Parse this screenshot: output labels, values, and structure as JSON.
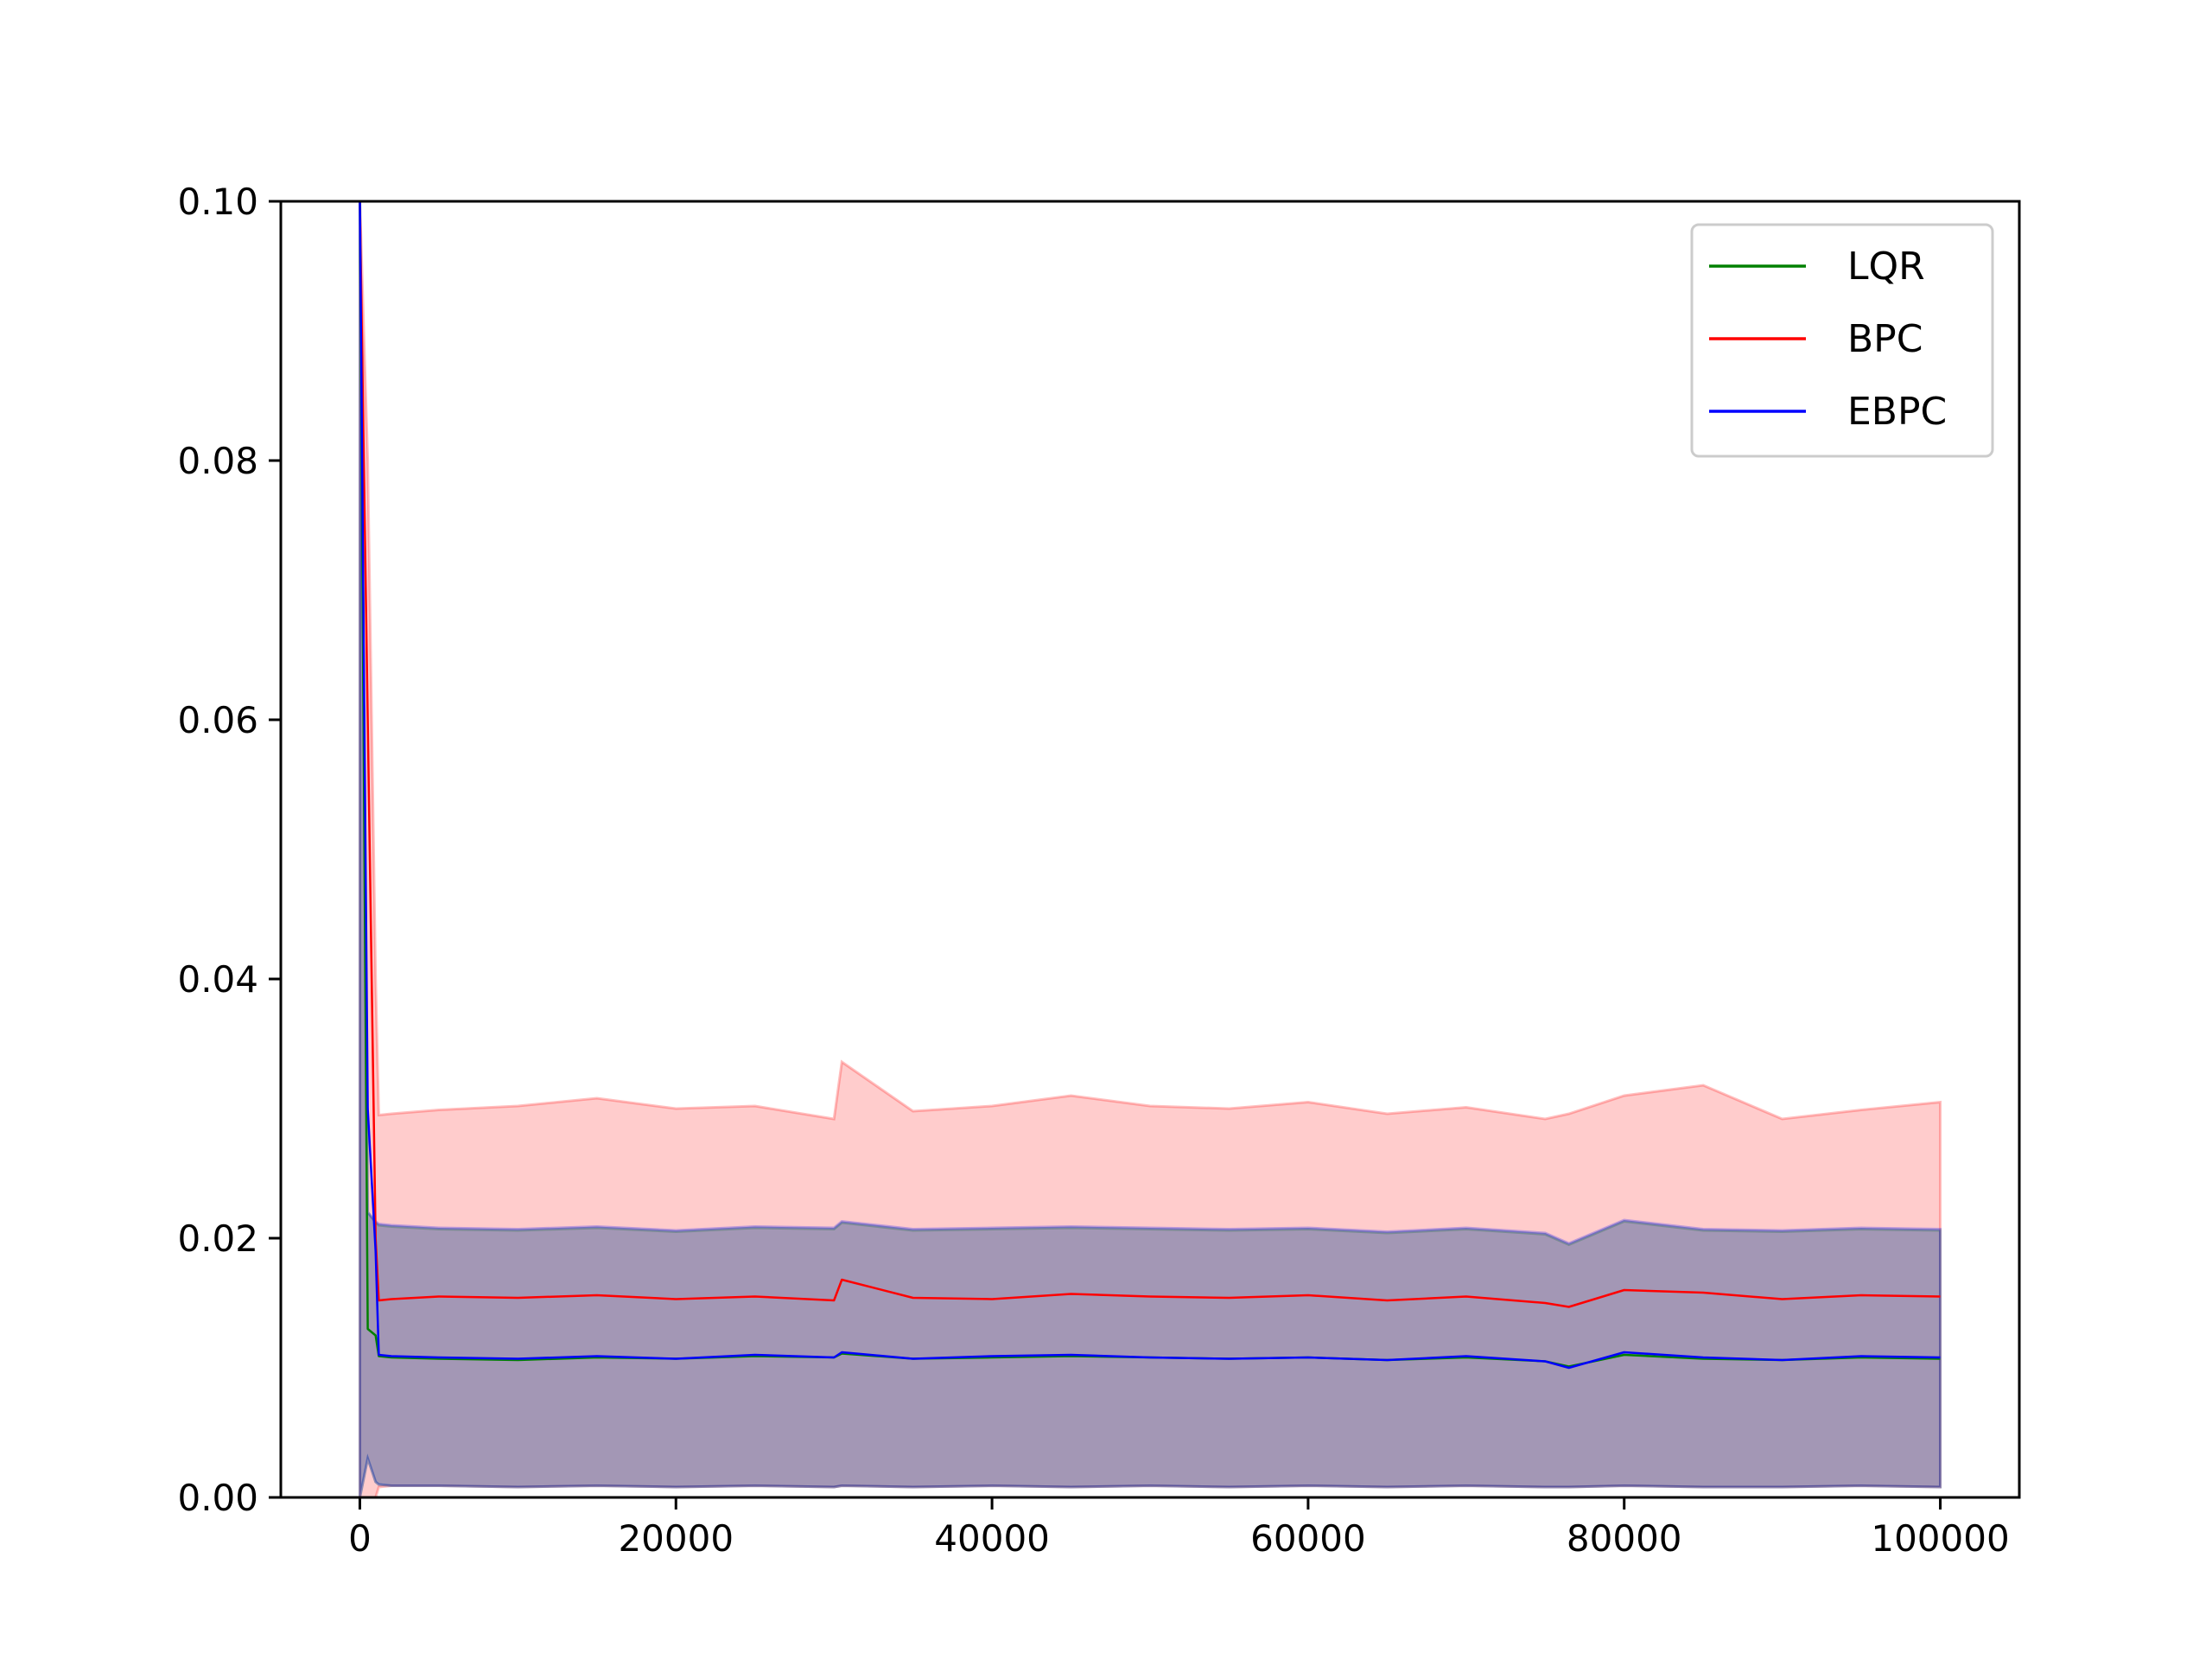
{
  "chart_data": {
    "type": "line",
    "title": "",
    "xlabel": "",
    "ylabel": "",
    "xlim": [
      -5000,
      105000
    ],
    "ylim": [
      0,
      0.1
    ],
    "x_ticks": [
      0,
      20000,
      40000,
      60000,
      80000,
      100000
    ],
    "x_tick_labels": [
      "0",
      "20000",
      "40000",
      "60000",
      "80000",
      "100000"
    ],
    "y_ticks": [
      0,
      0.02,
      0.04,
      0.06,
      0.08,
      0.1
    ],
    "y_tick_labels": [
      "0.00",
      "0.02",
      "0.04",
      "0.06",
      "0.08",
      "0.10"
    ],
    "grid": false,
    "legend_position": "top-right",
    "x": [
      0,
      500,
      1000,
      1200,
      2000,
      5000,
      10000,
      15000,
      20000,
      25000,
      30000,
      30500,
      35000,
      40000,
      45000,
      50000,
      55000,
      60000,
      65000,
      70000,
      75000,
      76500,
      80000,
      85000,
      90000,
      95000,
      100000
    ],
    "series": [
      {
        "name": "LQR",
        "color": "#008000",
        "values": [
          0.1,
          0.013,
          0.0125,
          0.0109,
          0.0108,
          0.0107,
          0.0106,
          0.0108,
          0.0107,
          0.0109,
          0.0108,
          0.0111,
          0.0107,
          0.0108,
          0.0109,
          0.0108,
          0.0107,
          0.0108,
          0.0106,
          0.0108,
          0.0105,
          0.0101,
          0.011,
          0.0107,
          0.0106,
          0.0108,
          0.0107
        ],
        "band_upper": [
          0.1,
          0.022,
          0.0212,
          0.021,
          0.0209,
          0.0207,
          0.0206,
          0.0208,
          0.0205,
          0.0208,
          0.0207,
          0.0212,
          0.0206,
          0.0207,
          0.0208,
          0.0207,
          0.0206,
          0.0207,
          0.0204,
          0.0207,
          0.0203,
          0.0195,
          0.0213,
          0.0206,
          0.0205,
          0.0207,
          0.0206
        ],
        "band_lower": [
          0.0,
          0.003,
          0.0012,
          0.001,
          0.0009,
          0.0009,
          0.0008,
          0.0009,
          0.0008,
          0.0009,
          0.0008,
          0.0009,
          0.0008,
          0.0009,
          0.0008,
          0.0009,
          0.0008,
          0.0009,
          0.0008,
          0.0009,
          0.0008,
          0.0008,
          0.0009,
          0.0008,
          0.0008,
          0.0009,
          0.0008
        ]
      },
      {
        "name": "BPC",
        "color": "#ff0000",
        "values": [
          0.1,
          0.06,
          0.02,
          0.0152,
          0.0153,
          0.0155,
          0.0154,
          0.0156,
          0.0153,
          0.0155,
          0.0152,
          0.0168,
          0.0154,
          0.0153,
          0.0157,
          0.0155,
          0.0154,
          0.0156,
          0.0152,
          0.0155,
          0.015,
          0.0147,
          0.016,
          0.0158,
          0.0153,
          0.0156,
          0.0155
        ],
        "band_upper": [
          0.1,
          0.08,
          0.04,
          0.0295,
          0.0296,
          0.0299,
          0.0302,
          0.0308,
          0.03,
          0.0302,
          0.0292,
          0.0336,
          0.0298,
          0.0302,
          0.031,
          0.0302,
          0.03,
          0.0305,
          0.0296,
          0.0301,
          0.0292,
          0.0296,
          0.031,
          0.0318,
          0.0292,
          0.0299,
          0.0305
        ],
        "band_lower": [
          0.0,
          0.0,
          0.0,
          0.0008,
          0.0009,
          0.0009,
          0.0008,
          0.0009,
          0.0008,
          0.0009,
          0.0008,
          0.0009,
          0.0008,
          0.0009,
          0.0008,
          0.0009,
          0.0008,
          0.0009,
          0.0008,
          0.0009,
          0.0008,
          0.0008,
          0.0009,
          0.0008,
          0.0008,
          0.0009,
          0.0008
        ]
      },
      {
        "name": "EBPC",
        "color": "#0000ff",
        "values": [
          0.1,
          0.03,
          0.019,
          0.011,
          0.0109,
          0.0108,
          0.0107,
          0.0109,
          0.0107,
          0.011,
          0.0108,
          0.0112,
          0.0107,
          0.0109,
          0.011,
          0.0108,
          0.0107,
          0.0108,
          0.0106,
          0.0109,
          0.0105,
          0.01,
          0.0112,
          0.0108,
          0.0106,
          0.0109,
          0.0108
        ],
        "band_upper": [
          0.1,
          0.022,
          0.0213,
          0.0211,
          0.021,
          0.0208,
          0.0207,
          0.0209,
          0.0206,
          0.0209,
          0.0208,
          0.0213,
          0.0207,
          0.0208,
          0.0209,
          0.0208,
          0.0207,
          0.0208,
          0.0205,
          0.0208,
          0.0204,
          0.0196,
          0.0214,
          0.0207,
          0.0206,
          0.0208,
          0.0207
        ],
        "band_lower": [
          0.0,
          0.003,
          0.0012,
          0.001,
          0.0009,
          0.0009,
          0.0008,
          0.0009,
          0.0008,
          0.0009,
          0.0008,
          0.0009,
          0.0008,
          0.0009,
          0.0008,
          0.0009,
          0.0008,
          0.0009,
          0.0008,
          0.0009,
          0.0008,
          0.0008,
          0.0009,
          0.0008,
          0.0008,
          0.0009,
          0.0008
        ]
      }
    ]
  }
}
